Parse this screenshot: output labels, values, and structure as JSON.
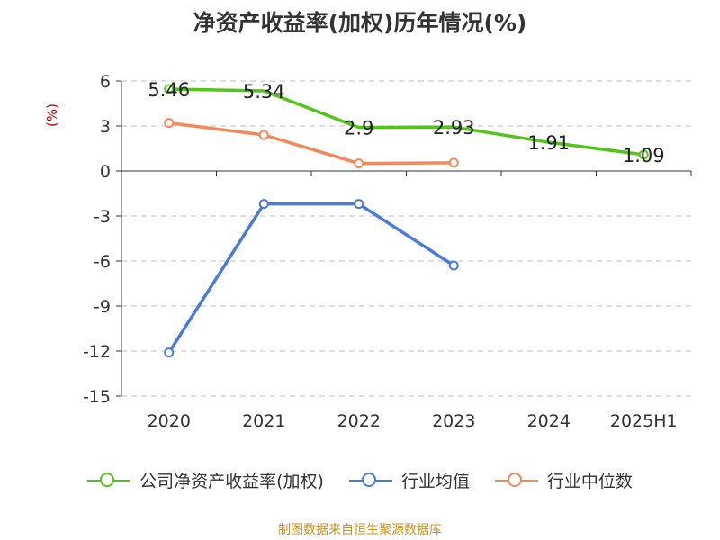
{
  "chart_data": {
    "type": "line",
    "title": "净资产收益率(加权)历年情况(%)",
    "ylabel": "(%)",
    "xlabel": "",
    "categories": [
      "2020",
      "2021",
      "2022",
      "2023",
      "2024",
      "2025H1"
    ],
    "ylim": [
      -15,
      6
    ],
    "yticks": [
      "6",
      "3",
      "0",
      "-3",
      "-6",
      "-9",
      "-12",
      "-15"
    ],
    "ytick_values": [
      6,
      3,
      0,
      -3,
      -6,
      -9,
      -12,
      -15
    ],
    "grid": true,
    "legend_position": "bottom",
    "series": [
      {
        "name": "公司净资产收益率(加权)",
        "color": "#52c41a",
        "values": [
          5.46,
          5.34,
          2.9,
          2.93,
          1.91,
          1.09
        ],
        "labels": [
          "5.46",
          "5.34",
          "2.9",
          "2.93",
          "1.91",
          "1.09"
        ]
      },
      {
        "name": "行业均值",
        "color": "#4a7bdb",
        "values": [
          -12.1,
          -2.2,
          -2.2,
          -6.3,
          null,
          null
        ]
      },
      {
        "name": "行业中位数",
        "color": "#f4885a",
        "values": [
          3.2,
          2.4,
          0.5,
          0.55,
          null,
          null
        ]
      }
    ]
  },
  "source": "制图数据来自恒生聚源数据库"
}
